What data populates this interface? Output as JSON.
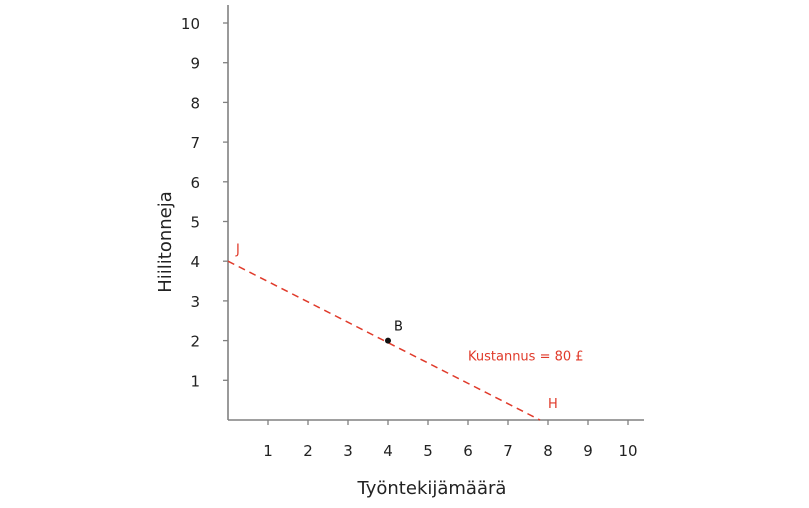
{
  "chart_data": {
    "type": "line",
    "title": "",
    "xlabel": "Työntekijämäärä",
    "ylabel": "Hiilitonneja",
    "xlim": [
      0,
      10.4
    ],
    "ylim": [
      0,
      10
    ],
    "xticks": [
      1,
      2,
      3,
      4,
      5,
      6,
      7,
      8,
      9,
      10
    ],
    "yticks": [
      1,
      2,
      3,
      4,
      5,
      6,
      7,
      8,
      9,
      10
    ],
    "grid": false,
    "series": [
      {
        "name": "Kustannus = 80 £",
        "style": "dashed",
        "color": "#e03a2a",
        "x": [
          0,
          7.8
        ],
        "y": [
          4,
          0
        ]
      }
    ],
    "points": [
      {
        "label": "B",
        "x": 4,
        "y": 2,
        "color": "#111111"
      }
    ],
    "annotations": [
      {
        "text": "J",
        "x": 0.2,
        "y": 4.2,
        "color": "#e03a2a"
      },
      {
        "text": "H",
        "x": 8.0,
        "y": 0.3,
        "color": "#e03a2a"
      },
      {
        "text": "Kustannus = 80 £",
        "x": 6.0,
        "y": 1.5,
        "color": "#e03a2a"
      },
      {
        "text": "B",
        "x": 4.15,
        "y": 2.25,
        "color": "#111111"
      }
    ]
  },
  "colors": {
    "axis": "#808080",
    "text": "#222222",
    "accent": "#e03a2a"
  }
}
